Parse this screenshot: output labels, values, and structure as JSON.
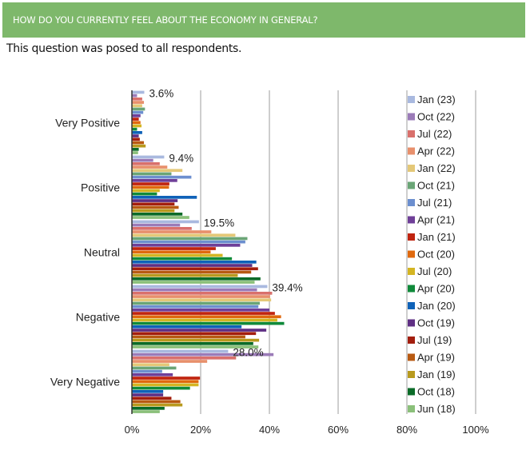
{
  "header": {
    "title": "HOW DO YOU CURRENTLY FEEL ABOUT THE ECONOMY IN GENERAL?"
  },
  "subtitle": "This question was posed to all respondents.",
  "chart_data": {
    "type": "bar",
    "orientation": "horizontal",
    "title": "HOW DO YOU CURRENTLY FEEL ABOUT THE ECONOMY IN GENERAL?",
    "xlabel": "",
    "ylabel": "",
    "xlim": [
      0,
      100
    ],
    "x_ticks": [
      "0%",
      "20%",
      "40%",
      "60%",
      "80%",
      "100%"
    ],
    "grid": true,
    "legend_position": "right",
    "categories": [
      "Very Positive",
      "Positive",
      "Neutral",
      "Negative",
      "Very Negative"
    ],
    "data_labels": [
      "3.6%",
      "9.4%",
      "19.5%",
      "39.4%",
      "28.0%"
    ],
    "series": [
      {
        "name": "Jan (23)",
        "color": "#a9b9df",
        "values": [
          3.6,
          9.4,
          19.5,
          39.4,
          28.0
        ]
      },
      {
        "name": "Oct (22)",
        "color": "#9b7bb8",
        "values": [
          1.5,
          6.2,
          14.0,
          36.4,
          41.2
        ]
      },
      {
        "name": "Jul (22)",
        "color": "#d9706c",
        "values": [
          3.0,
          8.1,
          17.4,
          40.8,
          30.3
        ]
      },
      {
        "name": "Apr (22)",
        "color": "#e8906c",
        "values": [
          3.5,
          10.3,
          23.1,
          40.2,
          21.9
        ]
      },
      {
        "name": "Jan (22)",
        "color": "#e4c878",
        "values": [
          3.0,
          14.7,
          30.1,
          40.5,
          10.9
        ]
      },
      {
        "name": "Oct (21)",
        "color": "#6aa576",
        "values": [
          3.8,
          11.5,
          33.6,
          37.2,
          12.9
        ]
      },
      {
        "name": "Jul (21)",
        "color": "#6c8fcf",
        "values": [
          3.3,
          17.3,
          33.0,
          36.8,
          8.8
        ]
      },
      {
        "name": "Apr (21)",
        "color": "#6f3f98",
        "values": [
          2.5,
          13.2,
          31.5,
          40.0,
          11.9
        ]
      },
      {
        "name": "Jan (21)",
        "color": "#c0240f",
        "values": [
          2.0,
          10.9,
          24.4,
          41.6,
          19.8
        ]
      },
      {
        "name": "Oct (20)",
        "color": "#e0690e",
        "values": [
          2.5,
          10.8,
          22.9,
          43.4,
          19.4
        ]
      },
      {
        "name": "Jul (20)",
        "color": "#d4b522",
        "values": [
          2.8,
          8.1,
          26.4,
          42.3,
          19.4
        ]
      },
      {
        "name": "Apr (20)",
        "color": "#0f8a3a",
        "values": [
          1.5,
          7.3,
          29.1,
          44.3,
          16.9
        ]
      },
      {
        "name": "Jan (20)",
        "color": "#0f62b8",
        "values": [
          3.0,
          18.9,
          36.2,
          31.9,
          9.1
        ]
      },
      {
        "name": "Oct (19)",
        "color": "#5f2f84",
        "values": [
          2.0,
          13.3,
          35.0,
          39.1,
          9.1
        ]
      },
      {
        "name": "Jul (19)",
        "color": "#a31e0e",
        "values": [
          2.3,
          12.4,
          36.7,
          36.1,
          11.5
        ]
      },
      {
        "name": "Apr (19)",
        "color": "#b85a12",
        "values": [
          3.5,
          13.6,
          34.7,
          33.0,
          14.1
        ]
      },
      {
        "name": "Jan (19)",
        "color": "#b89a1e",
        "values": [
          4.0,
          12.4,
          30.8,
          37.0,
          14.7
        ]
      },
      {
        "name": "Oct (18)",
        "color": "#0b6b28",
        "values": [
          2.0,
          14.7,
          37.4,
          35.3,
          9.5
        ]
      },
      {
        "name": "Jun (18)",
        "color": "#8bc07a",
        "values": [
          1.8,
          16.7,
          35.7,
          36.8,
          8.1
        ]
      }
    ]
  }
}
